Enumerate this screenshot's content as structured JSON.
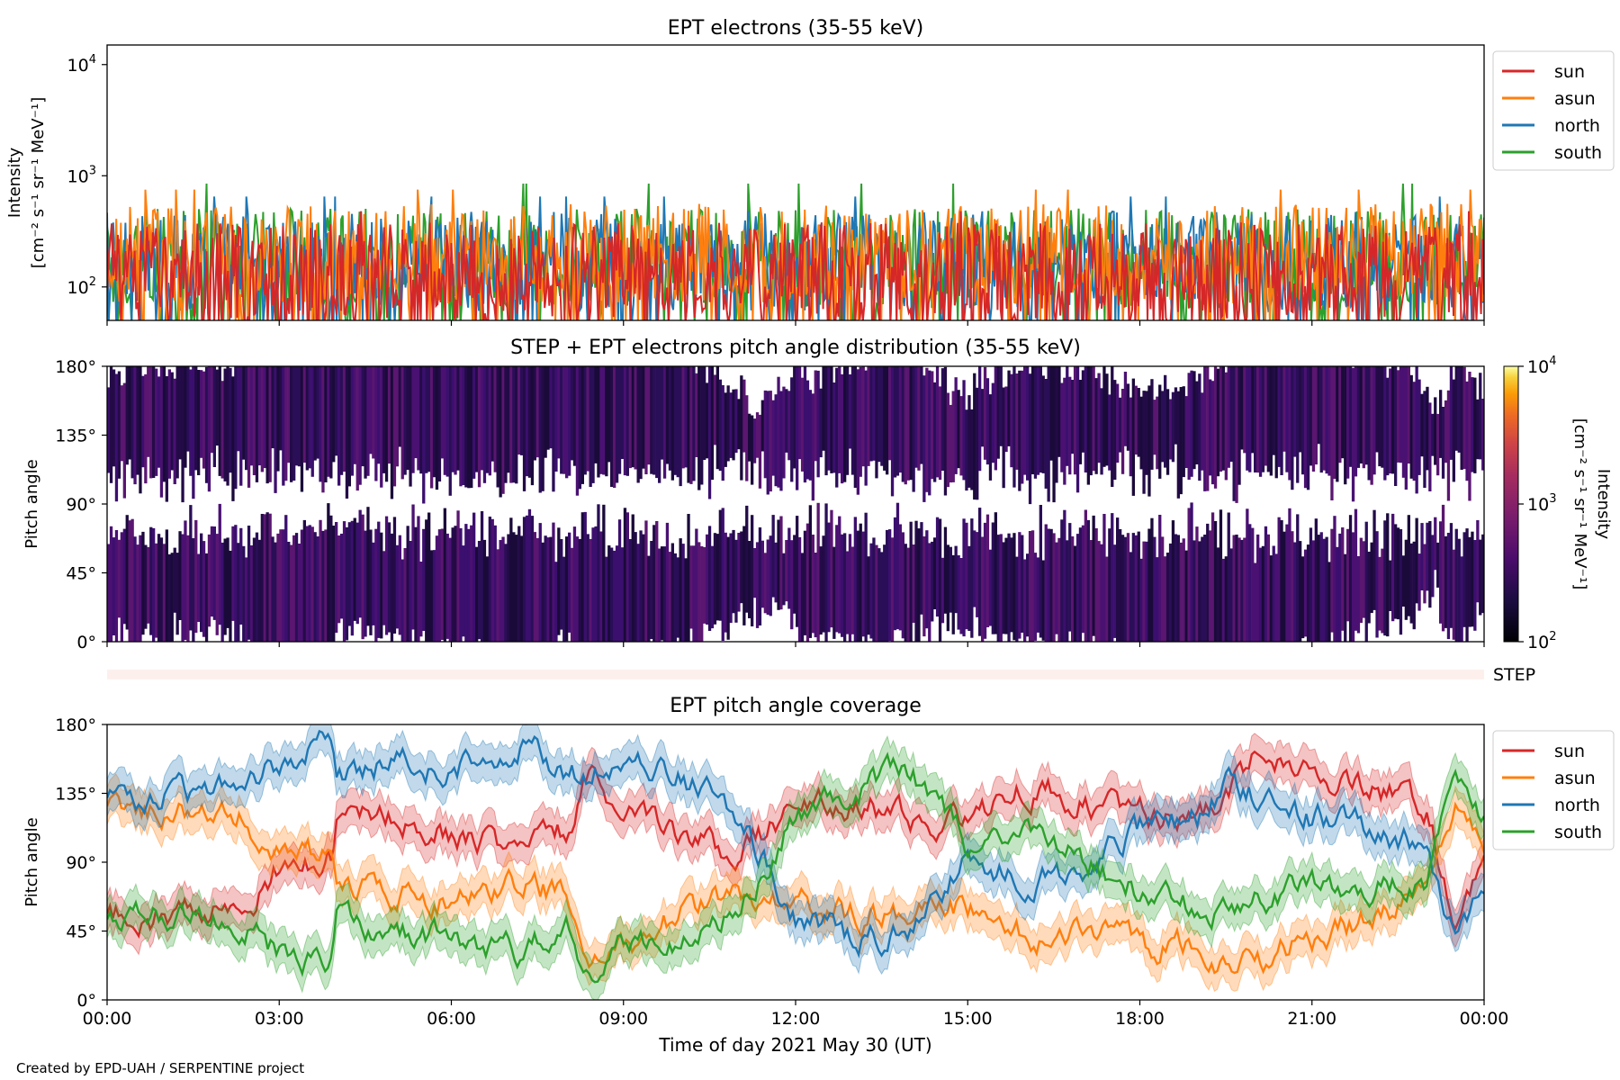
{
  "footer": "Created by EPD-UAH / SERPENTINE project",
  "colors": {
    "sun": "#d62728",
    "asun": "#ff7f0e",
    "north": "#1f77b4",
    "south": "#2ca02c"
  },
  "x_axis": {
    "label": "Time of day 2021 May 30 (UT)",
    "ticks": [
      "00:00",
      "03:00",
      "06:00",
      "09:00",
      "12:00",
      "15:00",
      "18:00",
      "21:00",
      "00:00"
    ],
    "range_hours": [
      0,
      24
    ]
  },
  "chart_data": [
    {
      "type": "line",
      "title": "EPT electrons (35-55 keV)",
      "ylabel": "Intensity",
      "ylabel_units": "[cm⁻² s⁻¹ sr⁻¹ MeV⁻¹]",
      "yscale": "log",
      "ylim": [
        50,
        15000
      ],
      "ytick_bases": [
        "10",
        "10",
        "10"
      ],
      "ytick_exps": [
        "4",
        "3",
        "2"
      ],
      "ytick_values": [
        10000,
        1000,
        100
      ],
      "legend": {
        "position": "upper-right",
        "entries": [
          "sun",
          "asun",
          "north",
          "south"
        ]
      },
      "series": [
        {
          "name": "sun",
          "typical": 150,
          "peak": 480
        },
        {
          "name": "asun",
          "typical": 220,
          "peak": 750
        },
        {
          "name": "north",
          "typical": 190,
          "peak": 650
        },
        {
          "name": "south",
          "typical": 200,
          "peak": 850
        }
      ]
    },
    {
      "type": "heatmap",
      "title": "STEP + EPT electrons pitch angle distribution (35-55 keV)",
      "ylabel": "Pitch angle",
      "ylim": [
        0,
        180
      ],
      "yticks": [
        "180°",
        "135°",
        "90°",
        "45°",
        "0°"
      ],
      "ytick_values": [
        180,
        135,
        90,
        45,
        0
      ],
      "colorbar": {
        "label": "Intensity",
        "units": "[cm⁻² s⁻¹ sr⁻¹ MeV⁻¹]",
        "scale": "log",
        "range": [
          100,
          10000
        ],
        "tick_bases": [
          "10",
          "10",
          "10"
        ],
        "tick_exps": [
          "4",
          "3",
          "2"
        ],
        "colormap": "inferno"
      },
      "step_label": "STEP"
    },
    {
      "type": "line",
      "title": "EPT pitch angle coverage",
      "ylabel": "Pitch angle",
      "ylim": [
        0,
        180
      ],
      "yticks": [
        "180°",
        "135°",
        "90°",
        "45°",
        "0°"
      ],
      "ytick_values": [
        180,
        135,
        90,
        45,
        0
      ],
      "legend": {
        "position": "upper-right",
        "entries": [
          "sun",
          "asun",
          "north",
          "south"
        ]
      },
      "x": [
        0,
        1,
        2,
        2.3,
        3,
        3.9,
        4,
        5,
        6,
        7,
        7.3,
        8,
        8.4,
        9,
        10,
        11,
        12,
        13,
        14,
        15,
        16,
        17,
        18,
        19,
        19.5,
        20,
        21,
        22,
        23,
        23.5,
        24
      ],
      "series": [
        {
          "name": "sun",
          "values": [
            55,
            55,
            58,
            60,
            85,
            95,
            120,
            120,
            110,
            100,
            100,
            110,
            150,
            120,
            105,
            95,
            125,
            130,
            120,
            115,
            140,
            130,
            120,
            115,
            130,
            160,
            150,
            140,
            125,
            50,
            90
          ]
        },
        {
          "name": "asun",
          "values": [
            125,
            125,
            122,
            120,
            100,
            90,
            70,
            70,
            65,
            72,
            75,
            68,
            20,
            35,
            55,
            70,
            65,
            55,
            55,
            60,
            40,
            45,
            35,
            35,
            20,
            25,
            40,
            55,
            70,
            130,
            95
          ]
        },
        {
          "name": "north",
          "values": [
            130,
            135,
            135,
            140,
            155,
            170,
            150,
            155,
            150,
            160,
            165,
            150,
            145,
            155,
            145,
            120,
            55,
            40,
            45,
            90,
            80,
            85,
            110,
            120,
            140,
            135,
            120,
            110,
            100,
            40,
            75
          ]
        },
        {
          "name": "south",
          "values": [
            50,
            55,
            52,
            50,
            30,
            25,
            55,
            45,
            40,
            35,
            30,
            45,
            20,
            35,
            40,
            60,
            120,
            140,
            150,
            100,
            120,
            95,
            70,
            60,
            55,
            65,
            75,
            75,
            80,
            140,
            115
          ]
        }
      ]
    }
  ]
}
